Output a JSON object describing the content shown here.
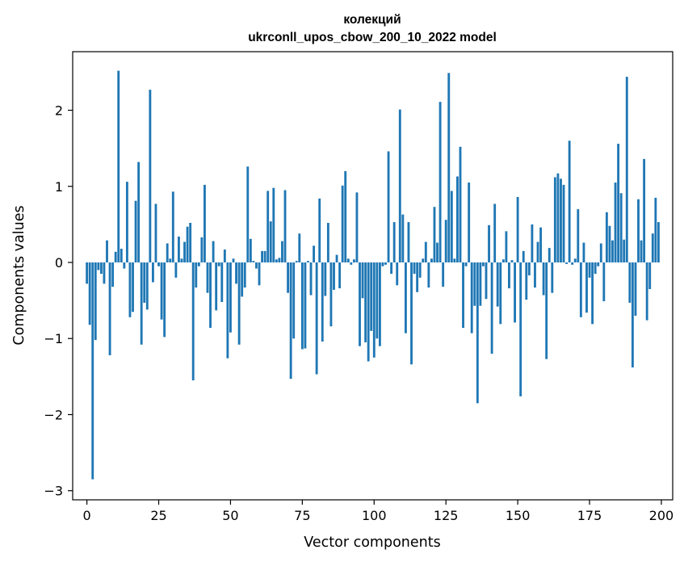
{
  "chart_data": {
    "type": "bar",
    "title_line1": "колекций",
    "title_line2": "ukrconll_upos_cbow_200_10_2022 model",
    "xlabel": "Vector components",
    "ylabel": "Components values",
    "xlim": [
      -4.95,
      203.95
    ],
    "ylim": [
      -3.12,
      2.77
    ],
    "xticks": [
      0,
      25,
      50,
      75,
      100,
      125,
      150,
      175,
      200
    ],
    "yticks": [
      -3,
      -2,
      -1,
      0,
      1,
      2
    ],
    "bar_color": "#1f77b4",
    "bar_width": 0.8,
    "x": [
      0,
      1,
      2,
      3,
      4,
      5,
      6,
      7,
      8,
      9,
      10,
      11,
      12,
      13,
      14,
      15,
      16,
      17,
      18,
      19,
      20,
      21,
      22,
      23,
      24,
      25,
      26,
      27,
      28,
      29,
      30,
      31,
      32,
      33,
      34,
      35,
      36,
      37,
      38,
      39,
      40,
      41,
      42,
      43,
      44,
      45,
      46,
      47,
      48,
      49,
      50,
      51,
      52,
      53,
      54,
      55,
      56,
      57,
      58,
      59,
      60,
      61,
      62,
      63,
      64,
      65,
      66,
      67,
      68,
      69,
      70,
      71,
      72,
      73,
      74,
      75,
      76,
      77,
      78,
      79,
      80,
      81,
      82,
      83,
      84,
      85,
      86,
      87,
      88,
      89,
      90,
      91,
      92,
      93,
      94,
      95,
      96,
      97,
      98,
      99,
      100,
      101,
      102,
      103,
      104,
      105,
      106,
      107,
      108,
      109,
      110,
      111,
      112,
      113,
      114,
      115,
      116,
      117,
      118,
      119,
      120,
      121,
      122,
      123,
      124,
      125,
      126,
      127,
      128,
      129,
      130,
      131,
      132,
      133,
      134,
      135,
      136,
      137,
      138,
      139,
      140,
      141,
      142,
      143,
      144,
      145,
      146,
      147,
      148,
      149,
      150,
      151,
      152,
      153,
      154,
      155,
      156,
      157,
      158,
      159,
      160,
      161,
      162,
      163,
      164,
      165,
      166,
      167,
      168,
      169,
      170,
      171,
      172,
      173,
      174,
      175,
      176,
      177,
      178,
      179,
      180,
      181,
      182,
      183,
      184,
      185,
      186,
      187,
      188,
      189,
      190,
      191,
      192,
      193,
      194,
      195,
      196,
      197,
      198,
      199
    ],
    "values": [
      -0.28,
      -0.82,
      -2.85,
      -1.02,
      -0.1,
      -0.15,
      -0.28,
      0.29,
      -1.22,
      -0.32,
      0.14,
      2.52,
      0.18,
      -0.08,
      1.06,
      -0.72,
      -0.65,
      0.81,
      1.32,
      -1.08,
      -0.53,
      -0.62,
      2.27,
      -0.26,
      0.77,
      -0.05,
      -0.75,
      -0.98,
      0.25,
      0.05,
      0.93,
      -0.2,
      0.34,
      0.05,
      0.27,
      0.47,
      0.52,
      -1.55,
      -0.33,
      -0.05,
      0.33,
      1.02,
      -0.4,
      -0.86,
      0.28,
      -0.63,
      -0.05,
      -0.52,
      0.17,
      -1.26,
      -0.92,
      0.05,
      -0.28,
      -1.08,
      -0.45,
      -0.33,
      1.26,
      0.31,
      0.02,
      -0.08,
      -0.3,
      0.15,
      0.15,
      0.94,
      0.54,
      0.98,
      0.04,
      0.06,
      0.28,
      0.95,
      -0.4,
      -1.53,
      -1.0,
      0.02,
      0.38,
      -1.14,
      -1.13,
      0.02,
      -0.43,
      0.22,
      -1.47,
      0.84,
      -1.04,
      -0.44,
      0.52,
      -0.84,
      -0.36,
      0.1,
      -0.34,
      1.01,
      1.2,
      0.05,
      -0.03,
      0.04,
      0.92,
      -1.1,
      -0.47,
      -1.05,
      -1.3,
      -0.9,
      -1.25,
      -1.0,
      -1.1,
      -0.05,
      -0.03,
      1.46,
      -0.15,
      0.53,
      -0.3,
      2.01,
      0.63,
      -0.93,
      0.53,
      -1.34,
      -0.15,
      -0.39,
      -0.2,
      0.05,
      0.27,
      -0.33,
      0.05,
      0.73,
      0.26,
      2.11,
      -0.32,
      0.56,
      2.49,
      0.94,
      0.05,
      1.13,
      1.52,
      -0.86,
      -0.05,
      1.05,
      -0.93,
      -0.57,
      -1.85,
      -0.57,
      -0.05,
      -0.48,
      0.49,
      -1.2,
      0.77,
      -0.58,
      -0.81,
      0.04,
      0.41,
      -0.34,
      0.03,
      -0.79,
      0.86,
      -1.76,
      0.15,
      -0.49,
      -0.17,
      0.5,
      -0.33,
      0.27,
      0.46,
      -0.43,
      -1.27,
      0.19,
      -0.4,
      1.12,
      1.17,
      1.1,
      1.02,
      -0.02,
      1.6,
      -0.03,
      0.05,
      0.7,
      -0.72,
      0.26,
      -0.66,
      -0.2,
      -0.81,
      -0.15,
      -0.05,
      0.25,
      -0.51,
      0.66,
      0.48,
      0.29,
      1.05,
      1.56,
      0.91,
      0.3,
      2.44,
      -0.53,
      -1.38,
      -0.7,
      0.83,
      0.29,
      1.36,
      -0.76,
      -0.35,
      0.38,
      0.85,
      0.53
    ]
  }
}
